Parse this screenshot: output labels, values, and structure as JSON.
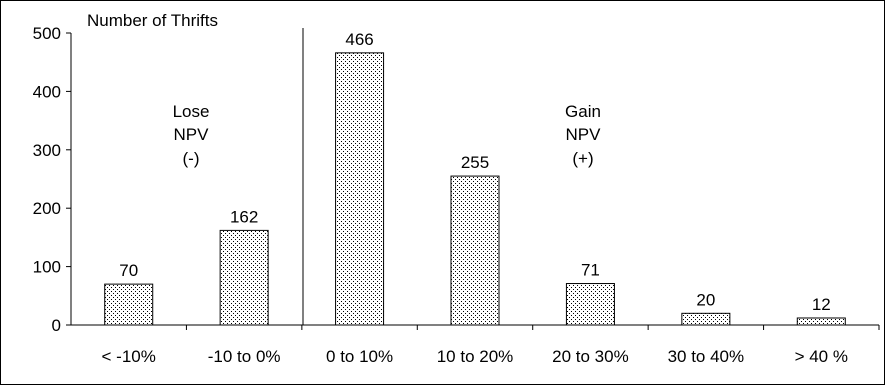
{
  "chart_data": {
    "type": "bar",
    "ylabel": "Number of Thrifts",
    "xlabel": "",
    "ylim": [
      0,
      500
    ],
    "yticks": [
      0,
      100,
      200,
      300,
      400,
      500
    ],
    "categories": [
      "< -10%",
      "-10 to 0%",
      "0 to 10%",
      "10 to 20%",
      "20 to 30%",
      "30 to 40%",
      "> 40 %"
    ],
    "values": [
      70,
      162,
      466,
      255,
      71,
      20,
      12
    ],
    "data_labels": [
      "70",
      "162",
      "466",
      "255",
      "71",
      "20",
      "12"
    ],
    "grid": false,
    "legend": "none",
    "bar_fill": "dotted pattern",
    "divider_between": [
      "-10 to 0%",
      "0 to 10%"
    ],
    "annotations": {
      "lose": [
        "Lose",
        "NPV",
        "(-)"
      ],
      "gain": [
        "Gain",
        "NPV",
        "(+)"
      ]
    }
  },
  "colors": {
    "bar_dots": "#000000",
    "bar_background": "#ffffff",
    "axis": "#000000"
  }
}
